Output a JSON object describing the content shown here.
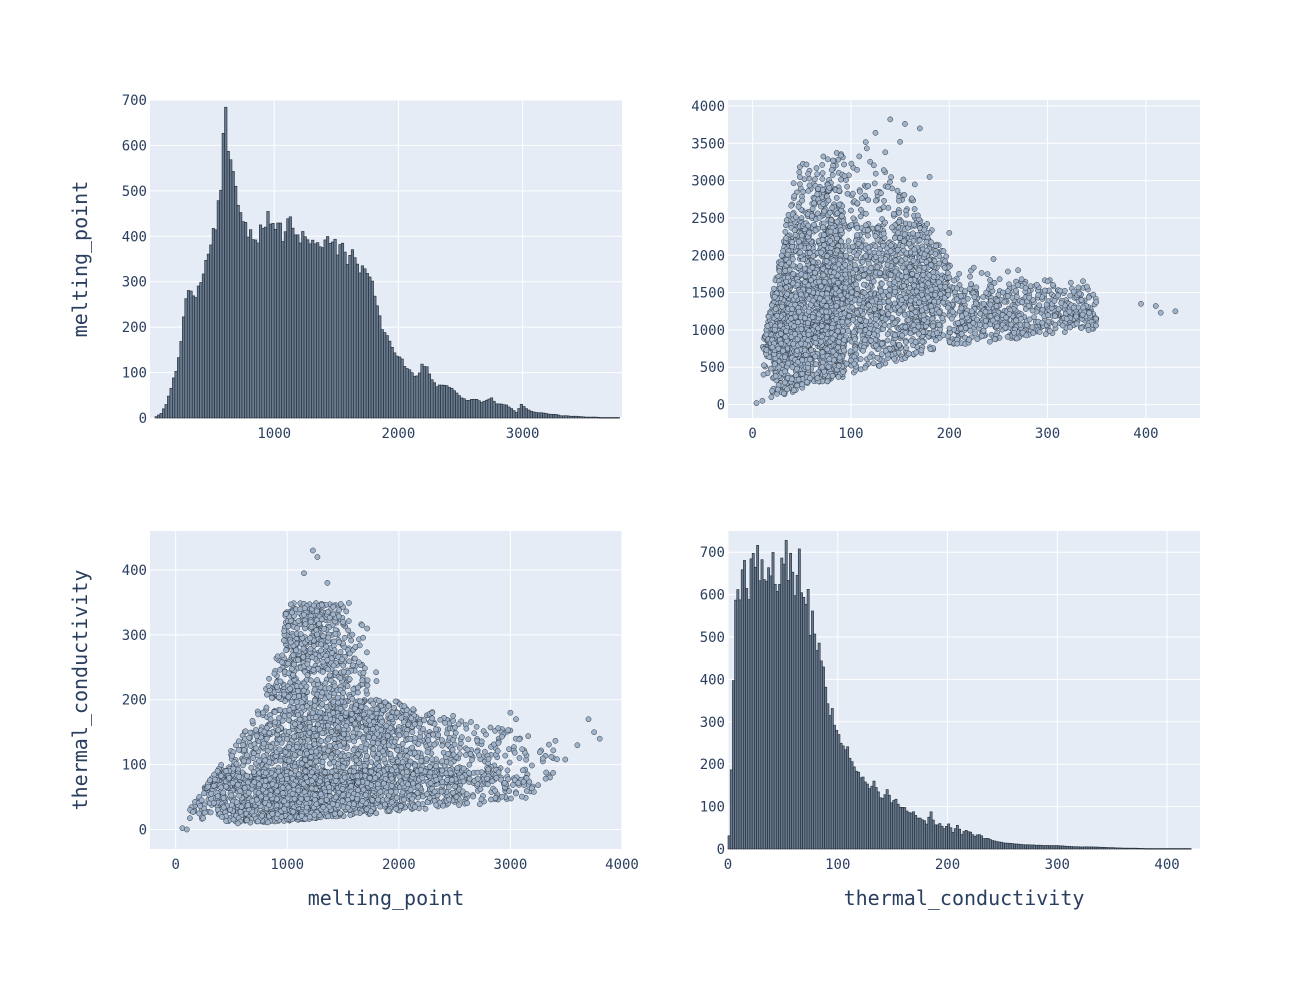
{
  "colors": {
    "plot_bg": "#E5ECF6",
    "grid": "#ffffff",
    "bar_fill": "#697a8f",
    "bar_line": "#1f2933",
    "marker_fill": "#9fb2c8",
    "marker_line": "#2b3440",
    "text": "#2a3f5f"
  },
  "chart_data": [
    {
      "type": "bar",
      "subtype": "histogram",
      "ylabel": "melting_point",
      "xlabel": "",
      "xlim": [
        0,
        3800
      ],
      "ylim": [
        0,
        700
      ],
      "xticks": [
        "1000",
        "2000",
        "3000"
      ],
      "xtick_values": [
        1000,
        2000,
        3000
      ],
      "yticks": [
        "0",
        "100",
        "200",
        "300",
        "400",
        "500",
        "600",
        "700"
      ],
      "ytick_values": [
        0,
        100,
        200,
        300,
        400,
        500,
        600,
        700
      ],
      "bin_width": 20,
      "bin_start": 40,
      "profile": [
        [
          40,
          3
        ],
        [
          80,
          10
        ],
        [
          120,
          30
        ],
        [
          160,
          65
        ],
        [
          200,
          105
        ],
        [
          240,
          170
        ],
        [
          280,
          265
        ],
        [
          320,
          280
        ],
        [
          360,
          275
        ],
        [
          400,
          310
        ],
        [
          440,
          340
        ],
        [
          480,
          395
        ],
        [
          520,
          430
        ],
        [
          560,
          520
        ],
        [
          580,
          630
        ],
        [
          600,
          665
        ],
        [
          620,
          590
        ],
        [
          660,
          525
        ],
        [
          700,
          485
        ],
        [
          740,
          445
        ],
        [
          780,
          415
        ],
        [
          820,
          405
        ],
        [
          860,
          400
        ],
        [
          900,
          420
        ],
        [
          940,
          445
        ],
        [
          980,
          420
        ],
        [
          1020,
          430
        ],
        [
          1060,
          400
        ],
        [
          1100,
          435
        ],
        [
          1140,
          420
        ],
        [
          1180,
          395
        ],
        [
          1220,
          400
        ],
        [
          1260,
          390
        ],
        [
          1300,
          380
        ],
        [
          1340,
          395
        ],
        [
          1380,
          380
        ],
        [
          1420,
          395
        ],
        [
          1460,
          400
        ],
        [
          1500,
          370
        ],
        [
          1540,
          380
        ],
        [
          1580,
          345
        ],
        [
          1620,
          365
        ],
        [
          1660,
          330
        ],
        [
          1700,
          325
        ],
        [
          1740,
          315
        ],
        [
          1780,
          300
        ],
        [
          1820,
          250
        ],
        [
          1860,
          200
        ],
        [
          1900,
          175
        ],
        [
          1940,
          155
        ],
        [
          1980,
          140
        ],
        [
          2020,
          125
        ],
        [
          2060,
          110
        ],
        [
          2100,
          100
        ],
        [
          2140,
          90
        ],
        [
          2180,
          115
        ],
        [
          2220,
          110
        ],
        [
          2260,
          85
        ],
        [
          2300,
          70
        ],
        [
          2340,
          75
        ],
        [
          2380,
          70
        ],
        [
          2420,
          65
        ],
        [
          2460,
          55
        ],
        [
          2500,
          45
        ],
        [
          2540,
          40
        ],
        [
          2580,
          40
        ],
        [
          2620,
          40
        ],
        [
          2660,
          35
        ],
        [
          2700,
          40
        ],
        [
          2740,
          45
        ],
        [
          2780,
          30
        ],
        [
          2820,
          30
        ],
        [
          2860,
          28
        ],
        [
          2900,
          20
        ],
        [
          2940,
          12
        ],
        [
          2980,
          30
        ],
        [
          3020,
          20
        ],
        [
          3060,
          15
        ],
        [
          3100,
          12
        ],
        [
          3140,
          12
        ],
        [
          3180,
          10
        ],
        [
          3220,
          8
        ],
        [
          3260,
          8
        ],
        [
          3300,
          5
        ],
        [
          3340,
          5
        ],
        [
          3380,
          4
        ],
        [
          3420,
          4
        ],
        [
          3460,
          3
        ],
        [
          3500,
          2
        ],
        [
          3540,
          2
        ],
        [
          3580,
          2
        ],
        [
          3620,
          1
        ],
        [
          3660,
          1
        ],
        [
          3700,
          1
        ],
        [
          3760,
          1
        ]
      ]
    },
    {
      "type": "scatter",
      "xlabel": "",
      "ylabel": "",
      "x_variable": "thermal_conductivity",
      "y_variable": "melting_point",
      "xlim": [
        -25,
        455
      ],
      "ylim": [
        -180,
        4080
      ],
      "xticks": [
        "0",
        "100",
        "200",
        "300",
        "400"
      ],
      "xtick_values": [
        0,
        100,
        200,
        300,
        400
      ],
      "yticks": [
        "0",
        "500",
        "1000",
        "1500",
        "2000",
        "2500",
        "3000",
        "3500",
        "4000"
      ],
      "ytick_values": [
        0,
        500,
        1000,
        1500,
        2000,
        2500,
        3000,
        3500,
        4000
      ],
      "outliers": [
        [
          140,
          3820
        ],
        [
          155,
          3760
        ],
        [
          170,
          3700
        ],
        [
          125,
          3640
        ],
        [
          150,
          3520
        ],
        [
          180,
          3050
        ],
        [
          165,
          2950
        ],
        [
          200,
          2300
        ],
        [
          245,
          1950
        ],
        [
          270,
          1800
        ],
        [
          300,
          1650
        ],
        [
          340,
          1580
        ],
        [
          395,
          1350
        ],
        [
          410,
          1320
        ],
        [
          430,
          1250
        ],
        [
          415,
          1230
        ],
        [
          10,
          50
        ],
        [
          4,
          20
        ]
      ]
    },
    {
      "type": "scatter",
      "xlabel": "melting_point",
      "ylabel": "thermal_conductivity",
      "x_variable": "melting_point",
      "y_variable": "thermal_conductivity",
      "xlim": [
        -230,
        4000
      ],
      "ylim": [
        -30,
        460
      ],
      "xticks": [
        "0",
        "1000",
        "2000",
        "3000",
        "4000"
      ],
      "xtick_values": [
        0,
        1000,
        2000,
        3000,
        4000
      ],
      "yticks": [
        "0",
        "100",
        "200",
        "300",
        "400"
      ],
      "ytick_values": [
        0,
        100,
        200,
        300,
        400
      ],
      "outliers": [
        [
          1230,
          430
        ],
        [
          1270,
          420
        ],
        [
          1150,
          395
        ],
        [
          1360,
          380
        ],
        [
          1500,
          320
        ],
        [
          1720,
          230
        ],
        [
          2050,
          190
        ],
        [
          2300,
          180
        ],
        [
          3000,
          180
        ],
        [
          3050,
          170
        ],
        [
          3700,
          170
        ],
        [
          3750,
          150
        ],
        [
          3800,
          140
        ],
        [
          3600,
          130
        ],
        [
          60,
          2
        ],
        [
          100,
          0
        ]
      ]
    },
    {
      "type": "bar",
      "subtype": "histogram",
      "xlabel": "thermal_conductivity",
      "ylabel": "",
      "xlim": [
        0,
        430
      ],
      "ylim": [
        0,
        750
      ],
      "xticks": [
        "0",
        "100",
        "200",
        "300",
        "400"
      ],
      "xtick_values": [
        0,
        100,
        200,
        300,
        400
      ],
      "yticks": [
        "0",
        "100",
        "200",
        "300",
        "400",
        "500",
        "600",
        "700"
      ],
      "ytick_values": [
        0,
        100,
        200,
        300,
        400,
        500,
        600,
        700
      ],
      "bin_width": 2,
      "bin_start": 0,
      "profile": [
        [
          0,
          30
        ],
        [
          2,
          180
        ],
        [
          4,
          390
        ],
        [
          6,
          600
        ],
        [
          8,
          615
        ],
        [
          10,
          610
        ],
        [
          12,
          640
        ],
        [
          14,
          680
        ],
        [
          16,
          630
        ],
        [
          18,
          610
        ],
        [
          20,
          660
        ],
        [
          22,
          690
        ],
        [
          24,
          650
        ],
        [
          26,
          715
        ],
        [
          28,
          630
        ],
        [
          30,
          660
        ],
        [
          32,
          640
        ],
        [
          34,
          610
        ],
        [
          36,
          670
        ],
        [
          38,
          640
        ],
        [
          40,
          690
        ],
        [
          42,
          650
        ],
        [
          44,
          600
        ],
        [
          46,
          640
        ],
        [
          48,
          680
        ],
        [
          50,
          660
        ],
        [
          52,
          700
        ],
        [
          54,
          650
        ],
        [
          56,
          690
        ],
        [
          58,
          630
        ],
        [
          60,
          600
        ],
        [
          62,
          660
        ],
        [
          64,
          690
        ],
        [
          66,
          600
        ],
        [
          68,
          580
        ],
        [
          70,
          560
        ],
        [
          72,
          600
        ],
        [
          74,
          520
        ],
        [
          76,
          580
        ],
        [
          78,
          510
        ],
        [
          80,
          480
        ],
        [
          82,
          500
        ],
        [
          84,
          440
        ],
        [
          86,
          420
        ],
        [
          88,
          380
        ],
        [
          90,
          350
        ],
        [
          92,
          325
        ],
        [
          94,
          320
        ],
        [
          96,
          290
        ],
        [
          98,
          270
        ],
        [
          100,
          265
        ],
        [
          104,
          250
        ],
        [
          108,
          235
        ],
        [
          112,
          210
        ],
        [
          116,
          190
        ],
        [
          120,
          175
        ],
        [
          124,
          155
        ],
        [
          128,
          140
        ],
        [
          132,
          160
        ],
        [
          136,
          130
        ],
        [
          140,
          120
        ],
        [
          144,
          140
        ],
        [
          148,
          110
        ],
        [
          152,
          115
        ],
        [
          156,
          100
        ],
        [
          160,
          95
        ],
        [
          164,
          85
        ],
        [
          168,
          90
        ],
        [
          172,
          75
        ],
        [
          176,
          70
        ],
        [
          180,
          60
        ],
        [
          184,
          85
        ],
        [
          188,
          55
        ],
        [
          192,
          60
        ],
        [
          196,
          50
        ],
        [
          200,
          60
        ],
        [
          204,
          40
        ],
        [
          208,
          55
        ],
        [
          212,
          35
        ],
        [
          216,
          45
        ],
        [
          220,
          40
        ],
        [
          224,
          30
        ],
        [
          228,
          35
        ],
        [
          232,
          25
        ],
        [
          236,
          25
        ],
        [
          240,
          20
        ],
        [
          250,
          15
        ],
        [
          260,
          12
        ],
        [
          270,
          10
        ],
        [
          280,
          9
        ],
        [
          290,
          8
        ],
        [
          300,
          8
        ],
        [
          310,
          6
        ],
        [
          320,
          5
        ],
        [
          330,
          5
        ],
        [
          340,
          4
        ],
        [
          350,
          3
        ],
        [
          360,
          2
        ],
        [
          370,
          2
        ],
        [
          380,
          1
        ],
        [
          390,
          1
        ],
        [
          400,
          1
        ],
        [
          410,
          1
        ],
        [
          420,
          1
        ]
      ]
    }
  ]
}
